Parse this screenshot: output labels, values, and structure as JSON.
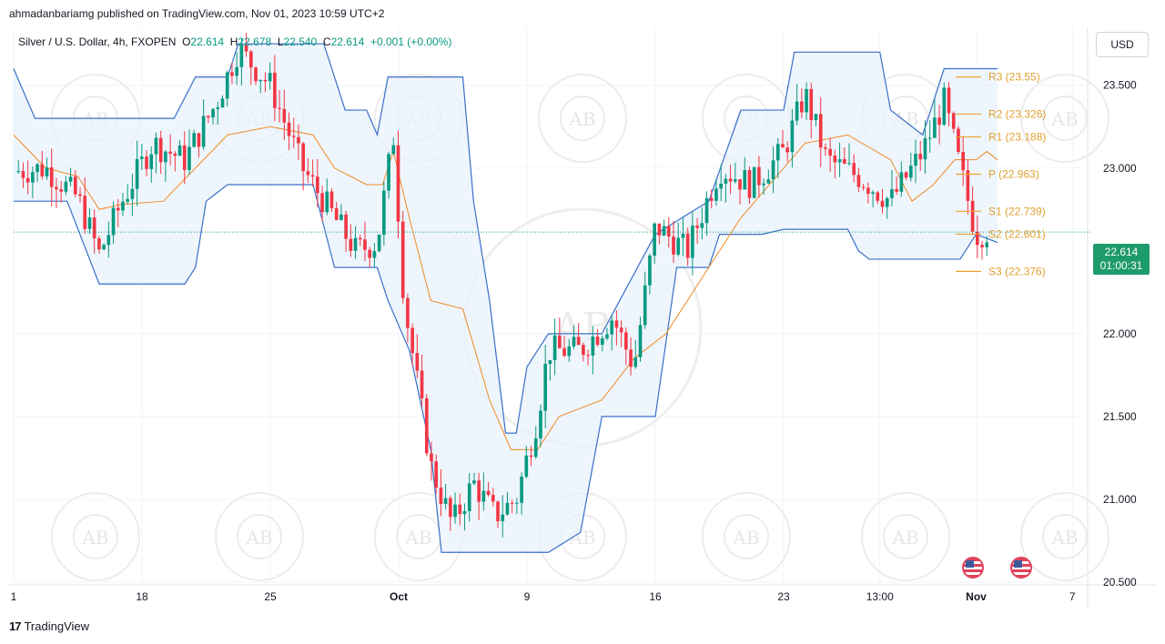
{
  "header": {
    "published": "ahmadanbariamg published on TradingView.com, Nov 01, 2023 10:59 UTC+2"
  },
  "legend": {
    "symbol": "Silver / U.S. Dollar, 4h, FXOPEN",
    "o_label": "O",
    "o": "22.614",
    "h_label": "H",
    "h": "22.678",
    "l_label": "L",
    "l": "22.540",
    "c_label": "C",
    "c": "22.614",
    "change": "+0.001 (+0.00%)"
  },
  "currency_button": "USD",
  "price_tag": {
    "price": "22.614",
    "countdown": "01:00:31"
  },
  "footer": {
    "logo": "17",
    "brand": "TradingView"
  },
  "watermark": {
    "text": "ARABIAN BUSINESS ACADEMY",
    "monogram": "AB"
  },
  "colors": {
    "up": "#089981",
    "down": "#f23645",
    "channel": "#3a6fc9",
    "channel_fill": "#e8f1fb",
    "midline": "#f08a24",
    "pivot": "#f0a030",
    "price_tag": "#1e9b6b"
  },
  "chart_data": {
    "type": "candlestick",
    "title": "Silver / U.S. Dollar, 4h, FXOPEN",
    "y_ticks": [
      "23.500",
      "23.000",
      "22.000",
      "21.500",
      "21.000",
      "20.500"
    ],
    "x_ticks": [
      "1",
      "18",
      "25",
      "Oct",
      "9",
      "16",
      "23",
      "13:00",
      "Nov",
      "7"
    ],
    "ylim": [
      20.5,
      23.85
    ],
    "last_price": 22.614,
    "pivots": [
      {
        "label": "R3 (23.55)",
        "value": 23.55
      },
      {
        "label": "R2 (23.326)",
        "value": 23.326
      },
      {
        "label": "R1 (23.188)",
        "value": 23.188
      },
      {
        "label": "P (22.963)",
        "value": 22.963
      },
      {
        "label": "S1 (22.739)",
        "value": 22.739
      },
      {
        "label": "S2 (22.601)",
        "value": 22.601
      },
      {
        "label": "S3 (22.376)",
        "value": 22.376
      }
    ],
    "close_path": [
      [
        0,
        22.98
      ],
      [
        0.03,
        23.0
      ],
      [
        0.06,
        22.82
      ],
      [
        0.08,
        22.48
      ],
      [
        0.1,
        22.78
      ],
      [
        0.13,
        23.15
      ],
      [
        0.16,
        23.05
      ],
      [
        0.19,
        23.4
      ],
      [
        0.21,
        23.72
      ],
      [
        0.24,
        23.5
      ],
      [
        0.27,
        23.0
      ],
      [
        0.3,
        22.7
      ],
      [
        0.32,
        22.5
      ],
      [
        0.34,
        22.55
      ],
      [
        0.355,
        23.2
      ],
      [
        0.365,
        22.2
      ],
      [
        0.39,
        21.2
      ],
      [
        0.41,
        20.85
      ],
      [
        0.43,
        21.1
      ],
      [
        0.45,
        20.9
      ],
      [
        0.47,
        21.0
      ],
      [
        0.49,
        21.5
      ],
      [
        0.5,
        21.9
      ],
      [
        0.53,
        21.9
      ],
      [
        0.56,
        22.1
      ],
      [
        0.58,
        21.8
      ],
      [
        0.6,
        22.65
      ],
      [
        0.63,
        22.5
      ],
      [
        0.66,
        23.0
      ],
      [
        0.69,
        22.9
      ],
      [
        0.72,
        23.1
      ],
      [
        0.74,
        23.45
      ],
      [
        0.76,
        23.05
      ],
      [
        0.79,
        22.95
      ],
      [
        0.82,
        22.8
      ],
      [
        0.85,
        23.1
      ],
      [
        0.87,
        23.4
      ],
      [
        0.885,
        23.0
      ],
      [
        0.9,
        22.6
      ],
      [
        0.91,
        22.62
      ]
    ],
    "channel_upper": [
      [
        0,
        23.6
      ],
      [
        0.02,
        23.3
      ],
      [
        0.1,
        23.3
      ],
      [
        0.15,
        23.3
      ],
      [
        0.17,
        23.55
      ],
      [
        0.2,
        23.55
      ],
      [
        0.21,
        23.75
      ],
      [
        0.29,
        23.75
      ],
      [
        0.31,
        23.35
      ],
      [
        0.33,
        23.35
      ],
      [
        0.34,
        23.2
      ],
      [
        0.35,
        23.55
      ],
      [
        0.42,
        23.55
      ],
      [
        0.43,
        22.8
      ],
      [
        0.445,
        22.2
      ],
      [
        0.46,
        21.4
      ],
      [
        0.47,
        21.4
      ],
      [
        0.48,
        21.8
      ],
      [
        0.5,
        22.0
      ],
      [
        0.55,
        22.0
      ],
      [
        0.6,
        22.6
      ],
      [
        0.65,
        22.8
      ],
      [
        0.68,
        23.35
      ],
      [
        0.72,
        23.35
      ],
      [
        0.73,
        23.7
      ],
      [
        0.81,
        23.7
      ],
      [
        0.82,
        23.35
      ],
      [
        0.85,
        23.2
      ],
      [
        0.87,
        23.6
      ],
      [
        0.92,
        23.6
      ]
    ],
    "channel_lower": [
      [
        0,
        22.8
      ],
      [
        0.05,
        22.8
      ],
      [
        0.08,
        22.3
      ],
      [
        0.16,
        22.3
      ],
      [
        0.17,
        22.4
      ],
      [
        0.18,
        22.8
      ],
      [
        0.2,
        22.9
      ],
      [
        0.28,
        22.9
      ],
      [
        0.3,
        22.4
      ],
      [
        0.34,
        22.4
      ],
      [
        0.35,
        22.2
      ],
      [
        0.37,
        21.9
      ],
      [
        0.39,
        21.3
      ],
      [
        0.4,
        20.68
      ],
      [
        0.5,
        20.68
      ],
      [
        0.53,
        20.8
      ],
      [
        0.55,
        21.5
      ],
      [
        0.6,
        21.5
      ],
      [
        0.62,
        22.4
      ],
      [
        0.65,
        22.4
      ],
      [
        0.66,
        22.6
      ],
      [
        0.7,
        22.6
      ],
      [
        0.72,
        22.63
      ],
      [
        0.78,
        22.63
      ],
      [
        0.79,
        22.5
      ],
      [
        0.8,
        22.45
      ],
      [
        0.85,
        22.45
      ],
      [
        0.86,
        22.45
      ],
      [
        0.885,
        22.45
      ],
      [
        0.9,
        22.6
      ],
      [
        0.92,
        22.55
      ]
    ],
    "midline": [
      [
        0,
        23.2
      ],
      [
        0.03,
        23.0
      ],
      [
        0.06,
        22.95
      ],
      [
        0.08,
        22.75
      ],
      [
        0.1,
        22.78
      ],
      [
        0.14,
        22.8
      ],
      [
        0.17,
        23.0
      ],
      [
        0.2,
        23.2
      ],
      [
        0.24,
        23.25
      ],
      [
        0.28,
        23.2
      ],
      [
        0.3,
        23.0
      ],
      [
        0.33,
        22.9
      ],
      [
        0.345,
        22.9
      ],
      [
        0.355,
        23.1
      ],
      [
        0.37,
        22.7
      ],
      [
        0.39,
        22.2
      ],
      [
        0.42,
        22.15
      ],
      [
        0.445,
        21.6
      ],
      [
        0.465,
        21.3
      ],
      [
        0.49,
        21.3
      ],
      [
        0.51,
        21.5
      ],
      [
        0.55,
        21.6
      ],
      [
        0.58,
        21.85
      ],
      [
        0.61,
        22.0
      ],
      [
        0.64,
        22.3
      ],
      [
        0.68,
        22.7
      ],
      [
        0.72,
        23.0
      ],
      [
        0.74,
        23.15
      ],
      [
        0.78,
        23.2
      ],
      [
        0.82,
        23.05
      ],
      [
        0.84,
        22.8
      ],
      [
        0.86,
        22.9
      ],
      [
        0.88,
        23.05
      ],
      [
        0.9,
        23.05
      ],
      [
        0.91,
        23.1
      ],
      [
        0.92,
        23.05
      ]
    ]
  }
}
